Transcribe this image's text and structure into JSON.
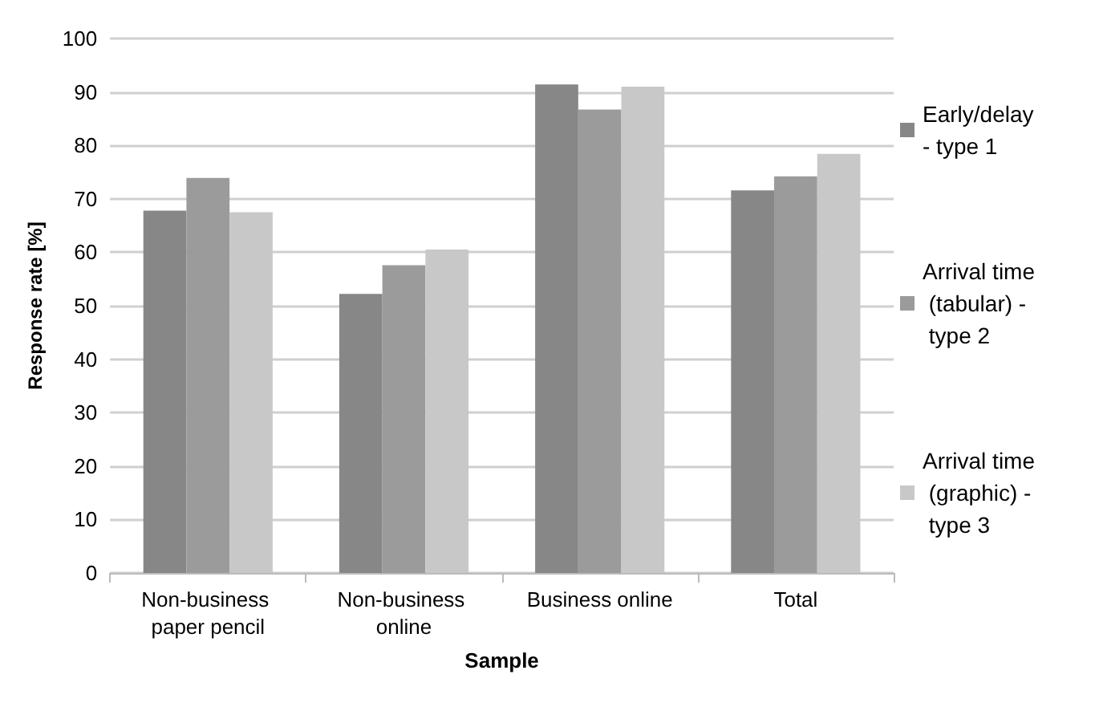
{
  "chart_data": {
    "type": "bar",
    "xlabel": "Sample",
    "ylabel": "Response rate [%]",
    "categories": [
      "Non-business paper pencil",
      "Non-business online",
      "Business online",
      "Total"
    ],
    "series": [
      {
        "name": "Early/delay - type 1",
        "color": "#878787",
        "values": [
          67.8,
          52.2,
          91.4,
          71.6
        ]
      },
      {
        "name": "Arrival time (tabular) - type 2",
        "color": "#9b9b9b",
        "values": [
          73.9,
          57.6,
          86.7,
          74.2
        ]
      },
      {
        "name": "Arrival time (graphic) - type 3",
        "color": "#c8c8c8",
        "values": [
          67.5,
          60.5,
          91.0,
          78.4
        ]
      }
    ],
    "ylim": [
      0,
      100
    ],
    "yticks": [
      0,
      10,
      20,
      30,
      40,
      50,
      60,
      70,
      80,
      90,
      100
    ],
    "grid": "y",
    "legend": "right"
  }
}
